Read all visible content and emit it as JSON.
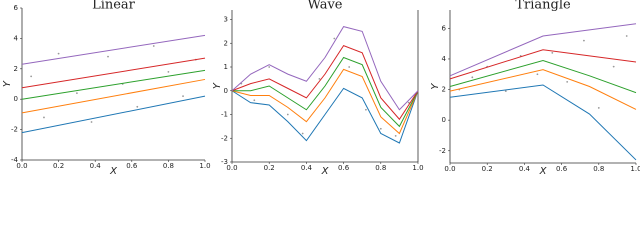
{
  "chart_data": [
    {
      "type": "line",
      "title": "Linear",
      "x_label": "X",
      "y_label": "Y",
      "x": [
        0,
        1
      ],
      "series": [
        {
          "color": "#1f77b4",
          "values": [
            -2.2,
            0.2
          ]
        },
        {
          "color": "#ff7f0e",
          "values": [
            -0.9,
            1.3
          ]
        },
        {
          "color": "#2ca02c",
          "values": [
            0,
            1.9
          ]
        },
        {
          "color": "#d62728",
          "values": [
            0.75,
            2.7
          ]
        },
        {
          "color": "#9467bd",
          "values": [
            2.3,
            4.2
          ]
        }
      ],
      "points": {
        "color": "#999999",
        "x": [
          0.05,
          0.12,
          0.2,
          0.3,
          0.38,
          0.47,
          0.55,
          0.63,
          0.72,
          0.8,
          0.88,
          0.95
        ],
        "y": [
          1.5,
          -1.2,
          3.0,
          0.4,
          -1.5,
          2.8,
          1.0,
          -0.5,
          3.5,
          1.8,
          0.2,
          2.6
        ]
      },
      "xlim": [
        0,
        1
      ],
      "ylim": [
        -4,
        6
      ],
      "xticks": [
        {
          "value": 0,
          "label": "0.0"
        },
        0.2,
        0.4,
        0.6,
        0.8,
        {
          "value": 1,
          "label": "1.0"
        }
      ],
      "yticks": [
        -4,
        -2,
        0,
        2,
        4,
        6
      ],
      "spines": [
        "left",
        "bottom"
      ]
    },
    {
      "type": "line",
      "title": "Wave",
      "x_label": "X",
      "y_label": "Y",
      "x": [
        0,
        0.1,
        0.2,
        0.3,
        0.4,
        0.5,
        0.6,
        0.7,
        0.8,
        0.9,
        1
      ],
      "series": [
        {
          "color": "#1f77b4",
          "values": [
            0,
            -0.5,
            -0.6,
            -1.3,
            -2.1,
            -1.0,
            0.1,
            -0.3,
            -1.8,
            -2.2,
            0
          ]
        },
        {
          "color": "#ff7f0e",
          "values": [
            0,
            -0.2,
            -0.2,
            -0.7,
            -1.3,
            -0.3,
            0.9,
            0.6,
            -1.1,
            -1.8,
            0
          ]
        },
        {
          "color": "#2ca02c",
          "values": [
            0,
            0,
            0.2,
            -0.3,
            -0.8,
            0.2,
            1.4,
            1.1,
            -0.7,
            -1.5,
            0
          ]
        },
        {
          "color": "#d62728",
          "values": [
            0,
            0.3,
            0.5,
            0.1,
            -0.3,
            0.7,
            1.9,
            1.6,
            -0.3,
            -1.2,
            0
          ]
        },
        {
          "color": "#9467bd",
          "values": [
            0,
            0.7,
            1.1,
            0.7,
            0.4,
            1.4,
            2.7,
            2.5,
            0.4,
            -0.8,
            0
          ]
        }
      ],
      "points": {
        "color": "#999999",
        "x": [
          0.05,
          0.12,
          0.2,
          0.3,
          0.38,
          0.47,
          0.55,
          0.63,
          0.72,
          0.8,
          0.88,
          0.95
        ],
        "y": [
          0.3,
          -0.4,
          1.0,
          -1.0,
          -1.8,
          0.5,
          2.2,
          1.0,
          -0.8,
          -1.6,
          -1.9,
          -0.5
        ]
      },
      "xlim": [
        0,
        1
      ],
      "ylim": [
        -3,
        3.4
      ],
      "xticks": [
        {
          "value": 0,
          "label": "0.0"
        },
        0.2,
        0.4,
        0.6,
        0.8,
        {
          "value": 1,
          "label": "1.0"
        }
      ],
      "yticks": [
        -3,
        -2,
        -1,
        0,
        1,
        2,
        3
      ],
      "spines": [
        "left",
        "bottom",
        "right"
      ]
    },
    {
      "type": "line",
      "title": "Triangle",
      "x_label": "X",
      "y_label": "Y",
      "x": [
        0,
        0.5,
        0.75,
        1
      ],
      "series": [
        {
          "color": "#1f77b4",
          "values": [
            1.5,
            2.3,
            0.4,
            -2.6
          ]
        },
        {
          "color": "#ff7f0e",
          "values": [
            1.9,
            3.3,
            2.2,
            0.7
          ]
        },
        {
          "color": "#2ca02c",
          "values": [
            2.2,
            3.9,
            2.9,
            1.8
          ]
        },
        {
          "color": "#d62728",
          "values": [
            2.7,
            4.6,
            4.2,
            3.8
          ]
        },
        {
          "color": "#9467bd",
          "values": [
            2.9,
            5.5,
            5.9,
            6.3
          ]
        }
      ],
      "points": {
        "color": "#999999",
        "x": [
          0.05,
          0.12,
          0.2,
          0.3,
          0.38,
          0.47,
          0.55,
          0.63,
          0.72,
          0.8,
          0.88,
          0.95
        ],
        "y": [
          2.0,
          2.8,
          3.5,
          1.9,
          4.2,
          3.0,
          4.4,
          2.5,
          5.2,
          0.8,
          3.5,
          5.5
        ]
      },
      "xlim": [
        0,
        1
      ],
      "ylim": [
        -2.8,
        7.2
      ],
      "xticks": [
        {
          "value": 0,
          "label": "0.0"
        },
        0.2,
        0.4,
        0.6,
        0.8,
        {
          "value": 1,
          "label": "1.0"
        }
      ],
      "yticks": [
        -2,
        0,
        2,
        4,
        6
      ],
      "spines": [
        "left",
        "bottom"
      ]
    }
  ]
}
